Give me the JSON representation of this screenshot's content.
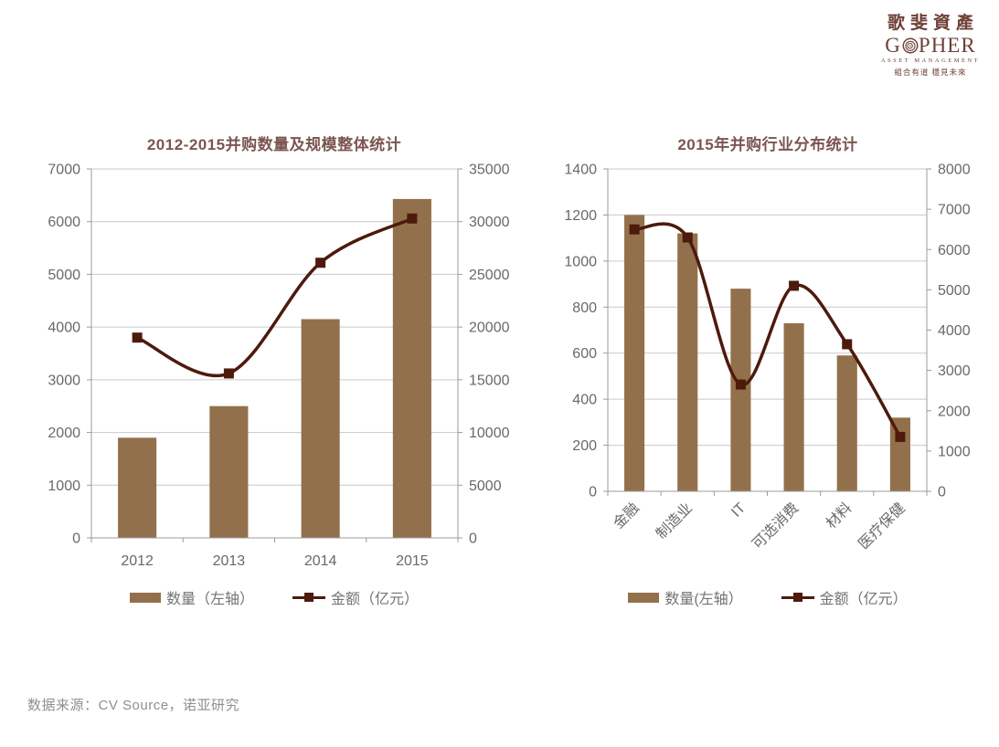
{
  "logo": {
    "cn": "歌斐資產",
    "en_prefix": "G",
    "en_suffix": "PHER",
    "subtitle": "ASSET MANAGEMENT",
    "tagline": "組合有道 穩見未來",
    "color": "#6E4137"
  },
  "footer": {
    "source": "数据来源：CV Source，诺亚研究"
  },
  "chart_data": [
    {
      "type": "bar+line combo",
      "title": "2012-2015并购数量及规模整体统计",
      "categories": [
        "2012",
        "2013",
        "2014",
        "2015"
      ],
      "series": [
        {
          "name": "数量（左轴）",
          "type": "bar",
          "axis": "left",
          "values": [
            1900,
            2500,
            4150,
            6430
          ]
        },
        {
          "name": "金额（亿元）",
          "type": "line",
          "axis": "right",
          "values": [
            19000,
            15600,
            26100,
            30300
          ]
        }
      ],
      "left_axis": {
        "min": 0,
        "max": 7000,
        "ticks": [
          0,
          1000,
          2000,
          3000,
          4000,
          5000,
          6000,
          7000
        ]
      },
      "right_axis": {
        "min": 0,
        "max": 35000,
        "ticks": [
          0,
          5000,
          10000,
          15000,
          20000,
          25000,
          30000,
          35000
        ]
      },
      "legend": [
        "数量（左轴）",
        "金额（亿元）"
      ],
      "grid": true,
      "legend_position": "bottom",
      "x_label_rotation": 0
    },
    {
      "type": "bar+line combo",
      "title": "2015年并购行业分布统计",
      "categories": [
        "金融",
        "制造业",
        "IT",
        "可选消费",
        "材料",
        "医疗保健"
      ],
      "series": [
        {
          "name": "数量(左轴）",
          "type": "bar",
          "axis": "left",
          "values": [
            1200,
            1120,
            880,
            730,
            590,
            320
          ]
        },
        {
          "name": "金额（亿元）",
          "type": "line",
          "axis": "right",
          "values": [
            6500,
            6300,
            2650,
            5100,
            3650,
            1350
          ]
        }
      ],
      "left_axis": {
        "min": 0,
        "max": 1400,
        "ticks": [
          0,
          200,
          400,
          600,
          800,
          1000,
          1200,
          1400
        ]
      },
      "right_axis": {
        "min": 0,
        "max": 8000,
        "ticks": [
          0,
          1000,
          2000,
          3000,
          4000,
          5000,
          6000,
          7000,
          8000
        ]
      },
      "legend": [
        "数量(左轴）",
        "金额（亿元）"
      ],
      "grid": true,
      "legend_position": "bottom",
      "x_label_rotation": -45
    }
  ],
  "style": {
    "bar_color": "#93704C",
    "line_color": "#4D1A0C",
    "grid_color": "#C9C9C9",
    "axis_color": "#9B9B9B",
    "label_color": "#696969",
    "title_color": "#7B554F",
    "legend_text_color": "#737373",
    "footer_color": "#8F8F8F"
  }
}
